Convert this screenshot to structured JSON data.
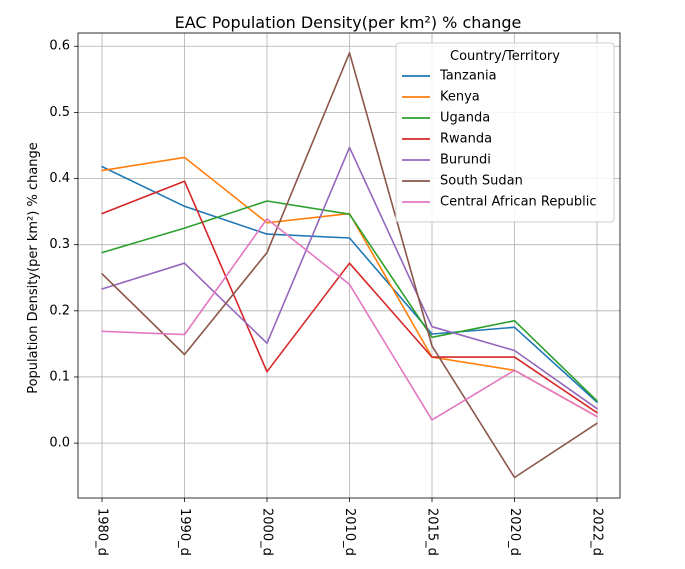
{
  "chart_data": {
    "type": "line",
    "title": "EAC Population Density(per km²) % change",
    "xlabel": "",
    "ylabel": "Population Density(per km²) % change",
    "categories": [
      "1980_d",
      "1990_d",
      "2000_d",
      "2010_d",
      "2015_d",
      "2020_d",
      "2022_d"
    ],
    "ylim": [
      -0.083,
      0.62
    ],
    "yticks": [
      0.0,
      0.1,
      0.2,
      0.3,
      0.4,
      0.5,
      0.6
    ],
    "ytick_labels": [
      "0.0",
      "0.1",
      "0.2",
      "0.3",
      "0.4",
      "0.5",
      "0.6"
    ],
    "grid": true,
    "legend": {
      "title": "Country/Territory",
      "placement": "top-right"
    },
    "series": [
      {
        "name": "Tanzania",
        "color": "#1f77b4",
        "values": [
          0.418,
          0.358,
          0.316,
          0.31,
          0.165,
          0.175,
          0.062
        ]
      },
      {
        "name": "Kenya",
        "color": "#ff7f0e",
        "values": [
          0.412,
          0.432,
          0.333,
          0.347,
          0.13,
          0.11,
          0.04
        ]
      },
      {
        "name": "Uganda",
        "color": "#2ca02c",
        "values": [
          0.288,
          0.325,
          0.366,
          0.346,
          0.16,
          0.185,
          0.064
        ]
      },
      {
        "name": "Rwanda",
        "color": "#d62728",
        "values": [
          0.347,
          0.396,
          0.108,
          0.272,
          0.13,
          0.13,
          0.046
        ]
      },
      {
        "name": "Burundi",
        "color": "#9467bd",
        "values": [
          0.233,
          0.272,
          0.151,
          0.447,
          0.176,
          0.14,
          0.052
        ]
      },
      {
        "name": "South Sudan",
        "color": "#8c564b",
        "values": [
          0.256,
          0.134,
          0.288,
          0.59,
          0.147,
          -0.052,
          0.03
        ]
      },
      {
        "name": "Central African Republic",
        "color": "#e377c2",
        "values": [
          0.169,
          0.164,
          0.339,
          0.24,
          0.035,
          0.11,
          0.04
        ]
      }
    ]
  }
}
